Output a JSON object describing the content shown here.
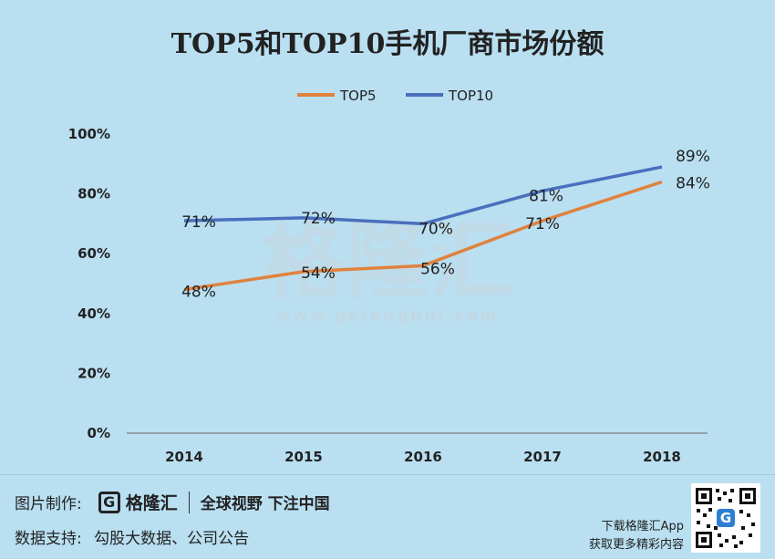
{
  "chart_data": {
    "type": "line",
    "title": "TOP5和TOP10手机厂商市场份额",
    "categories": [
      "2014",
      "2015",
      "2016",
      "2017",
      "2018"
    ],
    "series": [
      {
        "name": "TOP5",
        "color": "#e0823d",
        "values": [
          48,
          54,
          56,
          71,
          84
        ],
        "labels": [
          "48%",
          "54%",
          "56%",
          "71%",
          "84%"
        ]
      },
      {
        "name": "TOP10",
        "color": "#4a6fbd",
        "values": [
          71,
          72,
          70,
          81,
          89
        ],
        "labels": [
          "71%",
          "72%",
          "70%",
          "81%",
          "89%"
        ]
      }
    ],
    "yticks": [
      "0%",
      "20%",
      "40%",
      "60%",
      "80%",
      "100%"
    ],
    "ylim": [
      0,
      100
    ],
    "legend_position": "top",
    "grid": false
  },
  "watermark": {
    "text": "格隆汇",
    "url": "www.gelonghui.com"
  },
  "footer": {
    "made_by_label": "图片制作:",
    "brand_icon": "G",
    "brand_name": "格隆汇",
    "slogan": "全球视野 下注中国",
    "source_label": "数据支持:",
    "source_value": "勾股大数据、公司公告",
    "app_line1": "下载格隆汇App",
    "app_line2": "获取更多精彩内容",
    "qr_center": "G"
  }
}
